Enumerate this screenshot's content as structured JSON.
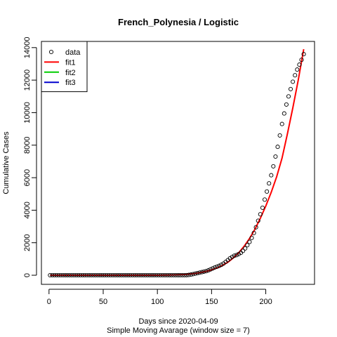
{
  "chart_data": {
    "type": "line",
    "title": "French_Polynesia / Logistic",
    "xlabel": "Days since 2020-04-09",
    "xlabel2": "Simple Moving Avarage (window size = 7)",
    "ylabel": "Cumulative Cases",
    "xlim": [
      -7,
      245
    ],
    "ylim": [
      -560,
      14380
    ],
    "x_ticks": [
      0,
      50,
      100,
      150,
      200
    ],
    "y_ticks": [
      0,
      2000,
      4000,
      6000,
      8000,
      10000,
      12000,
      14000
    ],
    "legend": {
      "position": "top-left",
      "entries": [
        {
          "label": "data",
          "color": "#000000",
          "kind": "point"
        },
        {
          "label": "fit1",
          "color": "#ff0000",
          "kind": "line"
        },
        {
          "label": "fit2",
          "color": "#00cd00",
          "kind": "line"
        },
        {
          "label": "fit3",
          "color": "#0000cd",
          "kind": "line"
        }
      ]
    },
    "series": [
      {
        "name": "data",
        "kind": "points",
        "color": "#000000",
        "points": [
          [
            1,
            0
          ],
          [
            3,
            0
          ],
          [
            5,
            0
          ],
          [
            7,
            0
          ],
          [
            9,
            0
          ],
          [
            11,
            0
          ],
          [
            13,
            0
          ],
          [
            15,
            0
          ],
          [
            17,
            0
          ],
          [
            19,
            0
          ],
          [
            21,
            0
          ],
          [
            23,
            0
          ],
          [
            25,
            0
          ],
          [
            27,
            0
          ],
          [
            29,
            0
          ],
          [
            31,
            0
          ],
          [
            33,
            0
          ],
          [
            35,
            0
          ],
          [
            37,
            0
          ],
          [
            39,
            0
          ],
          [
            41,
            0
          ],
          [
            43,
            0
          ],
          [
            45,
            0
          ],
          [
            47,
            0
          ],
          [
            49,
            0
          ],
          [
            51,
            0
          ],
          [
            53,
            0
          ],
          [
            55,
            0
          ],
          [
            57,
            0
          ],
          [
            59,
            0
          ],
          [
            61,
            0
          ],
          [
            63,
            0
          ],
          [
            65,
            0
          ],
          [
            67,
            0
          ],
          [
            69,
            0
          ],
          [
            71,
            0
          ],
          [
            73,
            0
          ],
          [
            75,
            0
          ],
          [
            77,
            0
          ],
          [
            79,
            0
          ],
          [
            81,
            0
          ],
          [
            83,
            0
          ],
          [
            85,
            0
          ],
          [
            87,
            0
          ],
          [
            89,
            0
          ],
          [
            91,
            0
          ],
          [
            93,
            0
          ],
          [
            95,
            0
          ],
          [
            97,
            0
          ],
          [
            99,
            0
          ],
          [
            101,
            0
          ],
          [
            103,
            0
          ],
          [
            105,
            0
          ],
          [
            107,
            0
          ],
          [
            109,
            0
          ],
          [
            111,
            0
          ],
          [
            113,
            0
          ],
          [
            115,
            0
          ],
          [
            117,
            0
          ],
          [
            119,
            0
          ],
          [
            121,
            0
          ],
          [
            123,
            0
          ],
          [
            125,
            0
          ],
          [
            127,
            5
          ],
          [
            129,
            20
          ],
          [
            131,
            40
          ],
          [
            133,
            70
          ],
          [
            135,
            100
          ],
          [
            137,
            130
          ],
          [
            139,
            160
          ],
          [
            141,
            190
          ],
          [
            143,
            220
          ],
          [
            145,
            250
          ],
          [
            147,
            300
          ],
          [
            149,
            360
          ],
          [
            151,
            420
          ],
          [
            153,
            480
          ],
          [
            155,
            530
          ],
          [
            157,
            580
          ],
          [
            159,
            640
          ],
          [
            161,
            720
          ],
          [
            163,
            820
          ],
          [
            165,
            930
          ],
          [
            167,
            1040
          ],
          [
            169,
            1130
          ],
          [
            171,
            1200
          ],
          [
            173,
            1240
          ],
          [
            175,
            1300
          ],
          [
            177,
            1380
          ],
          [
            179,
            1500
          ],
          [
            181,
            1650
          ],
          [
            183,
            1850
          ],
          [
            185,
            2050
          ],
          [
            187,
            2300
          ],
          [
            189,
            2600
          ],
          [
            191,
            2950
          ],
          [
            193,
            3350
          ],
          [
            195,
            3750
          ],
          [
            197,
            4150
          ],
          [
            199,
            4650
          ],
          [
            201,
            5150
          ],
          [
            203,
            5650
          ],
          [
            205,
            6150
          ],
          [
            207,
            6700
          ],
          [
            209,
            7300
          ],
          [
            211,
            7900
          ],
          [
            213,
            8600
          ],
          [
            215,
            9300
          ],
          [
            217,
            9950
          ],
          [
            219,
            10500
          ],
          [
            221,
            11000
          ],
          [
            223,
            11450
          ],
          [
            225,
            11900
          ],
          [
            227,
            12300
          ],
          [
            229,
            12650
          ],
          [
            231,
            12950
          ],
          [
            233,
            13250
          ],
          [
            235,
            13600
          ]
        ]
      },
      {
        "name": "fit1",
        "kind": "line",
        "color": "#ff0000",
        "points": [
          [
            1,
            0
          ],
          [
            20,
            0
          ],
          [
            40,
            0
          ],
          [
            60,
            0
          ],
          [
            80,
            0
          ],
          [
            100,
            0
          ],
          [
            110,
            10
          ],
          [
            120,
            30
          ],
          [
            125,
            45
          ],
          [
            130,
            75
          ],
          [
            135,
            110
          ],
          [
            140,
            170
          ],
          [
            145,
            240
          ],
          [
            150,
            330
          ],
          [
            155,
            450
          ],
          [
            160,
            600
          ],
          [
            165,
            800
          ],
          [
            170,
            1060
          ],
          [
            175,
            1380
          ],
          [
            180,
            1780
          ],
          [
            185,
            2260
          ],
          [
            190,
            2830
          ],
          [
            195,
            3500
          ],
          [
            200,
            4250
          ],
          [
            205,
            5100
          ],
          [
            210,
            6050
          ],
          [
            215,
            7200
          ],
          [
            220,
            8700
          ],
          [
            225,
            10300
          ],
          [
            230,
            12000
          ],
          [
            235,
            13900
          ]
        ]
      }
    ]
  }
}
